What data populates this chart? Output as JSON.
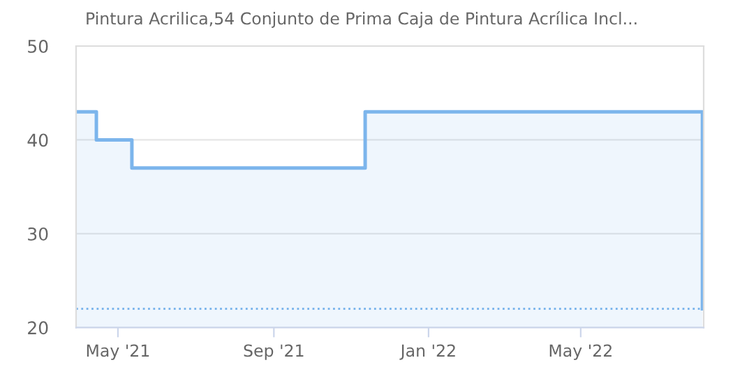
{
  "chart_data": {
    "type": "area",
    "title": "Pintura Acrilica,54 Conjunto de Prima Caja de Pintura Acrílica Incl...",
    "x": [
      "2021-03-29",
      "2021-04-14",
      "2021-04-14",
      "2021-05-12",
      "2021-05-12",
      "2021-11-12",
      "2021-11-12",
      "2022-08-05",
      "2022-08-05"
    ],
    "series": [
      {
        "color": "#7cb5ec",
        "values": [
          43,
          43,
          40,
          40,
          37,
          37,
          43,
          43,
          22
        ]
      }
    ],
    "xlim": [
      "2021-03-29",
      "2022-08-06"
    ],
    "xticks": [
      {
        "value": "2021-05-01",
        "label": "May '21"
      },
      {
        "value": "2021-09-01",
        "label": "Sep '21"
      },
      {
        "value": "2022-01-01",
        "label": "Jan '22"
      },
      {
        "value": "2022-05-01",
        "label": "May '22"
      }
    ],
    "ylim": [
      20,
      50
    ],
    "yticks": [
      20,
      30,
      40,
      50
    ],
    "ref_lines": [
      {
        "axis": "y",
        "value": 22,
        "color": "#7cb5ec",
        "line_style": "dotted"
      }
    ],
    "grid": "y",
    "legend": false
  }
}
